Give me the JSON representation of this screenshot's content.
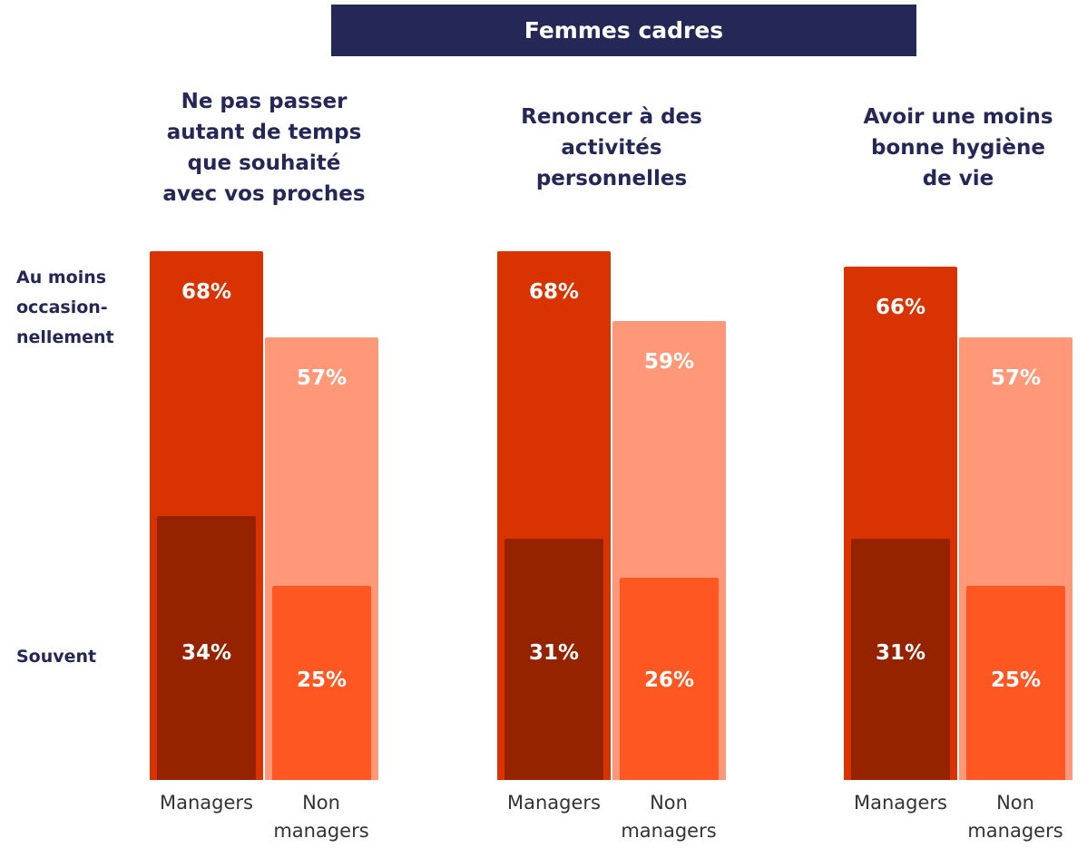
{
  "header": {
    "title": "Femmes cadres"
  },
  "chart_data": [
    {
      "type": "bar",
      "title": "Ne pas passer autant de temps que souhaité avec vos proches",
      "categories": [
        "Managers",
        "Non managers"
      ],
      "series": [
        {
          "name": "Au moins occasion-nellement",
          "colors": [
            "#d83300",
            "#ff9878"
          ],
          "values": [
            68,
            57
          ],
          "value_labels": [
            "68%",
            "57%"
          ]
        },
        {
          "name": "Souvent",
          "colors": [
            "#962300",
            "#ff5722"
          ],
          "values": [
            34,
            25
          ],
          "value_labels": [
            "34%",
            "25%"
          ]
        }
      ]
    },
    {
      "type": "bar",
      "title": "Renoncer à des activités personnelles",
      "categories": [
        "Managers",
        "Non managers"
      ],
      "series": [
        {
          "name": "Au moins occasion-nellement",
          "colors": [
            "#d83300",
            "#ff9878"
          ],
          "values": [
            68,
            59
          ],
          "value_labels": [
            "68%",
            "59%"
          ]
        },
        {
          "name": "Souvent",
          "colors": [
            "#962300",
            "#ff5722"
          ],
          "values": [
            31,
            26
          ],
          "value_labels": [
            "31%",
            "26%"
          ]
        }
      ]
    },
    {
      "type": "bar",
      "title": "Avoir une moins bonne hygiène de vie",
      "categories": [
        "Managers",
        "Non managers"
      ],
      "series": [
        {
          "name": "Au moins occasion-nellement",
          "colors": [
            "#d83300",
            "#ff9878"
          ],
          "values": [
            66,
            57
          ],
          "value_labels": [
            "66%",
            "57%"
          ]
        },
        {
          "name": "Souvent",
          "colors": [
            "#962300",
            "#ff5722"
          ],
          "values": [
            31,
            25
          ],
          "value_labels": [
            "31%",
            "25%"
          ]
        }
      ]
    }
  ]
}
